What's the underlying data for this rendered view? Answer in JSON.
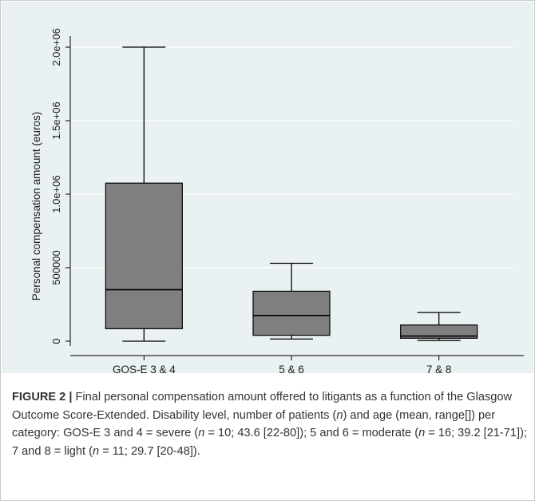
{
  "chart_data": {
    "type": "boxplot",
    "ylabel": "Personal compensation amount (euros)",
    "ylim": [
      0,
      2000000
    ],
    "y_ticks": [
      {
        "value": 0,
        "label": "0"
      },
      {
        "value": 500000,
        "label": "500000"
      },
      {
        "value": 1000000,
        "label": "1.0e+06"
      },
      {
        "value": 1500000,
        "label": "1.5e+06"
      },
      {
        "value": 2000000,
        "label": "2.0e+06"
      }
    ],
    "categories": [
      "GOS-E 3 & 4",
      "5 & 6",
      "7 & 8"
    ],
    "boxes": [
      {
        "category": "GOS-E 3 & 4",
        "min": 0,
        "q1": 85000,
        "median": 350000,
        "q3": 1075000,
        "max": 2000000
      },
      {
        "category": "5 & 6",
        "min": 15000,
        "q1": 40000,
        "median": 175000,
        "q3": 340000,
        "max": 530000
      },
      {
        "category": "7 & 8",
        "min": 5000,
        "q1": 20000,
        "median": 35000,
        "q3": 110000,
        "max": 195000
      }
    ],
    "grid": true,
    "box_color": "#7f7f7f",
    "background_color": "#eaf1f3",
    "grid_color": "#ffffff"
  },
  "caption": {
    "label": "FIGURE 2 |",
    "t1": " Final personal compensation amount offered to litigants as a function of the Glasgow Outcome Score-Extended. Disability level, number of patients (",
    "n1": "n",
    "t2": ") and age (mean, range[]) per category: GOS-E 3 and 4 = severe (",
    "n2": "n",
    "t3": " = 10; 43.6 [22-80]); 5 and 6 = moderate (",
    "n3": "n",
    "t4": " = 16; 39.2 [21-71]); 7 and 8 = light (",
    "n4": "n",
    "t5": " = 11; 29.7 [20-48])."
  }
}
